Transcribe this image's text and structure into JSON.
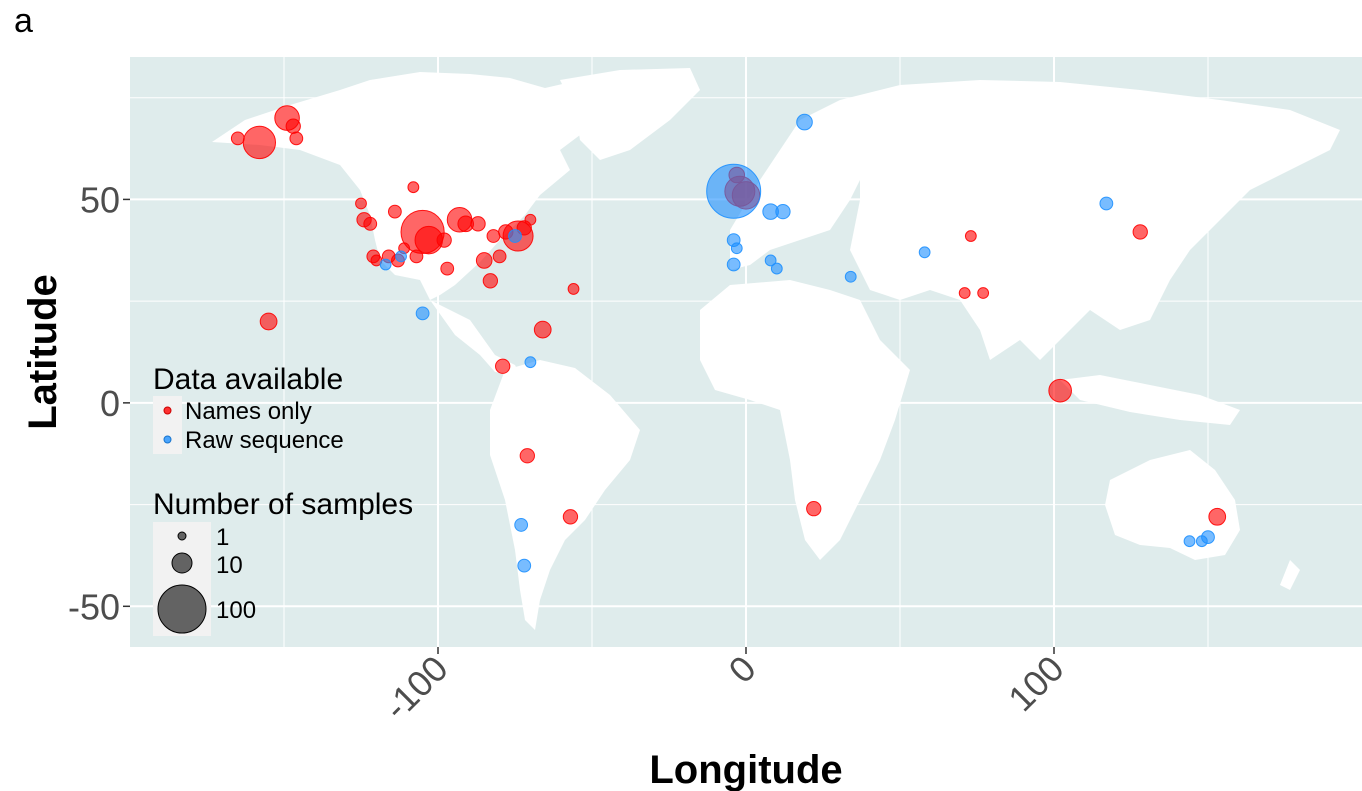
{
  "panel_label": "a",
  "chart_data": {
    "type": "scatter",
    "map": "world",
    "xlabel": "Longitude",
    "ylabel": "Latitude",
    "xlim": [
      -200,
      200
    ],
    "ylim": [
      -60,
      85
    ],
    "xticks": [
      -100,
      0,
      100
    ],
    "yticks": [
      -50,
      0,
      50
    ],
    "xtick_labels": [
      "-100",
      "0",
      "100"
    ],
    "ytick_labels": [
      "-50",
      "0",
      "50"
    ],
    "grid": true,
    "colors": {
      "background": "#dfecec",
      "land": "#ffffff",
      "names_only": "#ff0000",
      "raw_sequence": "#1e90ff"
    },
    "legend": {
      "placement": "left",
      "color_title": "Data available",
      "color_entries": [
        {
          "label": "Names only",
          "color": "#ff0000"
        },
        {
          "label": "Raw sequence",
          "color": "#1e90ff"
        }
      ],
      "size_title": "Number of samples",
      "size_entries": [
        {
          "label": "1",
          "value": 1
        },
        {
          "label": "10",
          "value": 10
        },
        {
          "label": "100",
          "value": 100
        }
      ]
    },
    "series": [
      {
        "name": "Names only",
        "color": "#ff0000",
        "points": [
          {
            "lon": -165,
            "lat": 65,
            "n": 2
          },
          {
            "lon": -158,
            "lat": 64,
            "n": 30
          },
          {
            "lon": -149,
            "lat": 70,
            "n": 15
          },
          {
            "lon": -147,
            "lat": 68,
            "n": 3
          },
          {
            "lon": -146,
            "lat": 65,
            "n": 2
          },
          {
            "lon": -125,
            "lat": 49,
            "n": 1
          },
          {
            "lon": -124,
            "lat": 45,
            "n": 3
          },
          {
            "lon": -122,
            "lat": 44,
            "n": 2
          },
          {
            "lon": -121,
            "lat": 36,
            "n": 2
          },
          {
            "lon": -120,
            "lat": 35,
            "n": 1
          },
          {
            "lon": -116,
            "lat": 36,
            "n": 2
          },
          {
            "lon": -114,
            "lat": 47,
            "n": 2
          },
          {
            "lon": -113,
            "lat": 35,
            "n": 2
          },
          {
            "lon": -111,
            "lat": 38,
            "n": 1
          },
          {
            "lon": -108,
            "lat": 53,
            "n": 1
          },
          {
            "lon": -107,
            "lat": 36,
            "n": 2
          },
          {
            "lon": -105,
            "lat": 42,
            "n": 60
          },
          {
            "lon": -103,
            "lat": 40,
            "n": 20
          },
          {
            "lon": -98,
            "lat": 40,
            "n": 3
          },
          {
            "lon": -97,
            "lat": 33,
            "n": 2
          },
          {
            "lon": -93,
            "lat": 45,
            "n": 15
          },
          {
            "lon": -91,
            "lat": 44,
            "n": 4
          },
          {
            "lon": -87,
            "lat": 44,
            "n": 3
          },
          {
            "lon": -85,
            "lat": 35,
            "n": 4
          },
          {
            "lon": -83,
            "lat": 30,
            "n": 3
          },
          {
            "lon": -82,
            "lat": 41,
            "n": 2
          },
          {
            "lon": -80,
            "lat": 36,
            "n": 2
          },
          {
            "lon": -78,
            "lat": 42,
            "n": 3
          },
          {
            "lon": -74,
            "lat": 41,
            "n": 25
          },
          {
            "lon": -72,
            "lat": 43,
            "n": 3
          },
          {
            "lon": -70,
            "lat": 45,
            "n": 1
          },
          {
            "lon": -56,
            "lat": 28,
            "n": 1
          },
          {
            "lon": -155,
            "lat": 20,
            "n": 5
          },
          {
            "lon": -66,
            "lat": 18,
            "n": 5
          },
          {
            "lon": -79,
            "lat": 9,
            "n": 3
          },
          {
            "lon": -71,
            "lat": -13,
            "n": 3
          },
          {
            "lon": -57,
            "lat": -28,
            "n": 3
          },
          {
            "lon": -3,
            "lat": 56,
            "n": 4
          },
          {
            "lon": -2,
            "lat": 52,
            "n": 25
          },
          {
            "lon": 0,
            "lat": 51,
            "n": 20
          },
          {
            "lon": 22,
            "lat": -26,
            "n": 3
          },
          {
            "lon": 73,
            "lat": 41,
            "n": 1
          },
          {
            "lon": 71,
            "lat": 27,
            "n": 1
          },
          {
            "lon": 77,
            "lat": 27,
            "n": 1
          },
          {
            "lon": 128,
            "lat": 42,
            "n": 3
          },
          {
            "lon": 102,
            "lat": 3,
            "n": 12
          },
          {
            "lon": 153,
            "lat": -28,
            "n": 5
          }
        ]
      },
      {
        "name": "Raw sequence",
        "color": "#1e90ff",
        "points": [
          {
            "lon": -4,
            "lat": 52,
            "n": 100
          },
          {
            "lon": 19,
            "lat": 69,
            "n": 4
          },
          {
            "lon": 8,
            "lat": 47,
            "n": 4
          },
          {
            "lon": 12,
            "lat": 47,
            "n": 3
          },
          {
            "lon": -4,
            "lat": 40,
            "n": 2
          },
          {
            "lon": -3,
            "lat": 38,
            "n": 1
          },
          {
            "lon": -4,
            "lat": 34,
            "n": 2
          },
          {
            "lon": 8,
            "lat": 35,
            "n": 1
          },
          {
            "lon": 10,
            "lat": 33,
            "n": 1
          },
          {
            "lon": 34,
            "lat": 31,
            "n": 1
          },
          {
            "lon": 58,
            "lat": 37,
            "n": 1
          },
          {
            "lon": 117,
            "lat": 49,
            "n": 2
          },
          {
            "lon": -112,
            "lat": 36,
            "n": 1
          },
          {
            "lon": -117,
            "lat": 34,
            "n": 1
          },
          {
            "lon": -75,
            "lat": 41,
            "n": 2
          },
          {
            "lon": -105,
            "lat": 22,
            "n": 2
          },
          {
            "lon": -70,
            "lat": 10,
            "n": 1
          },
          {
            "lon": -73,
            "lat": -30,
            "n": 2
          },
          {
            "lon": -72,
            "lat": -40,
            "n": 2
          },
          {
            "lon": 144,
            "lat": -34,
            "n": 1
          },
          {
            "lon": 148,
            "lat": -34,
            "n": 1
          },
          {
            "lon": 150,
            "lat": -33,
            "n": 2
          }
        ]
      }
    ]
  }
}
